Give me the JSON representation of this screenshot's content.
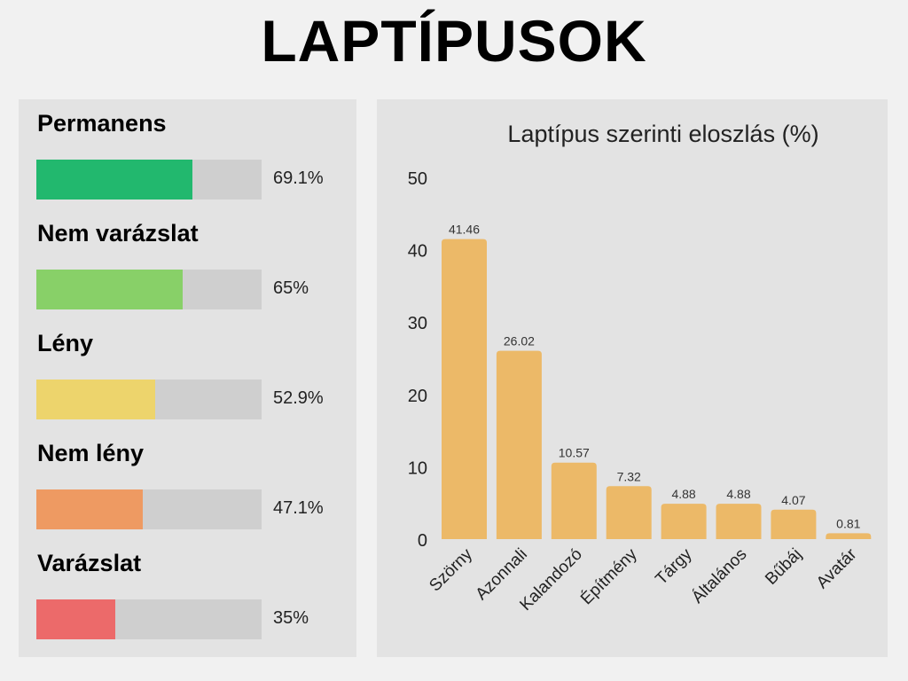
{
  "title": "LAPTÍPUSOK",
  "progress_items": [
    {
      "label": "Permanens",
      "percent": 69.1,
      "text": "69.1%",
      "color": "#22b86e"
    },
    {
      "label": "Nem varázslat",
      "percent": 65,
      "text": "65%",
      "color": "#88d068"
    },
    {
      "label": "Lény",
      "percent": 52.9,
      "text": "52.9%",
      "color": "#edd46c"
    },
    {
      "label": "Nem lény",
      "percent": 47.1,
      "text": "47.1%",
      "color": "#ee9a62"
    },
    {
      "label": "Varázslat",
      "percent": 35,
      "text": "35%",
      "color": "#ec6a6a"
    }
  ],
  "chart_data": {
    "type": "bar",
    "title": "Laptípus szerinti eloszlás (%)",
    "categories": [
      "Szörny",
      "Azonnali",
      "Kalandozó",
      "Építmény",
      "Tárgy",
      "Általános",
      "Bűbáj",
      "Avatár"
    ],
    "values": [
      41.46,
      26.02,
      10.57,
      7.32,
      4.88,
      4.88,
      4.07,
      0.81
    ],
    "value_labels": [
      "41.46",
      "26.02",
      "10.57",
      "7.32",
      "4.88",
      "4.88",
      "4.07",
      "0.81"
    ],
    "ylim": [
      0,
      50
    ],
    "yticks": [
      0,
      10,
      20,
      30,
      40,
      50
    ],
    "xlabel": "",
    "ylabel": "",
    "grid": false,
    "bar_color": "#ecb968"
  }
}
